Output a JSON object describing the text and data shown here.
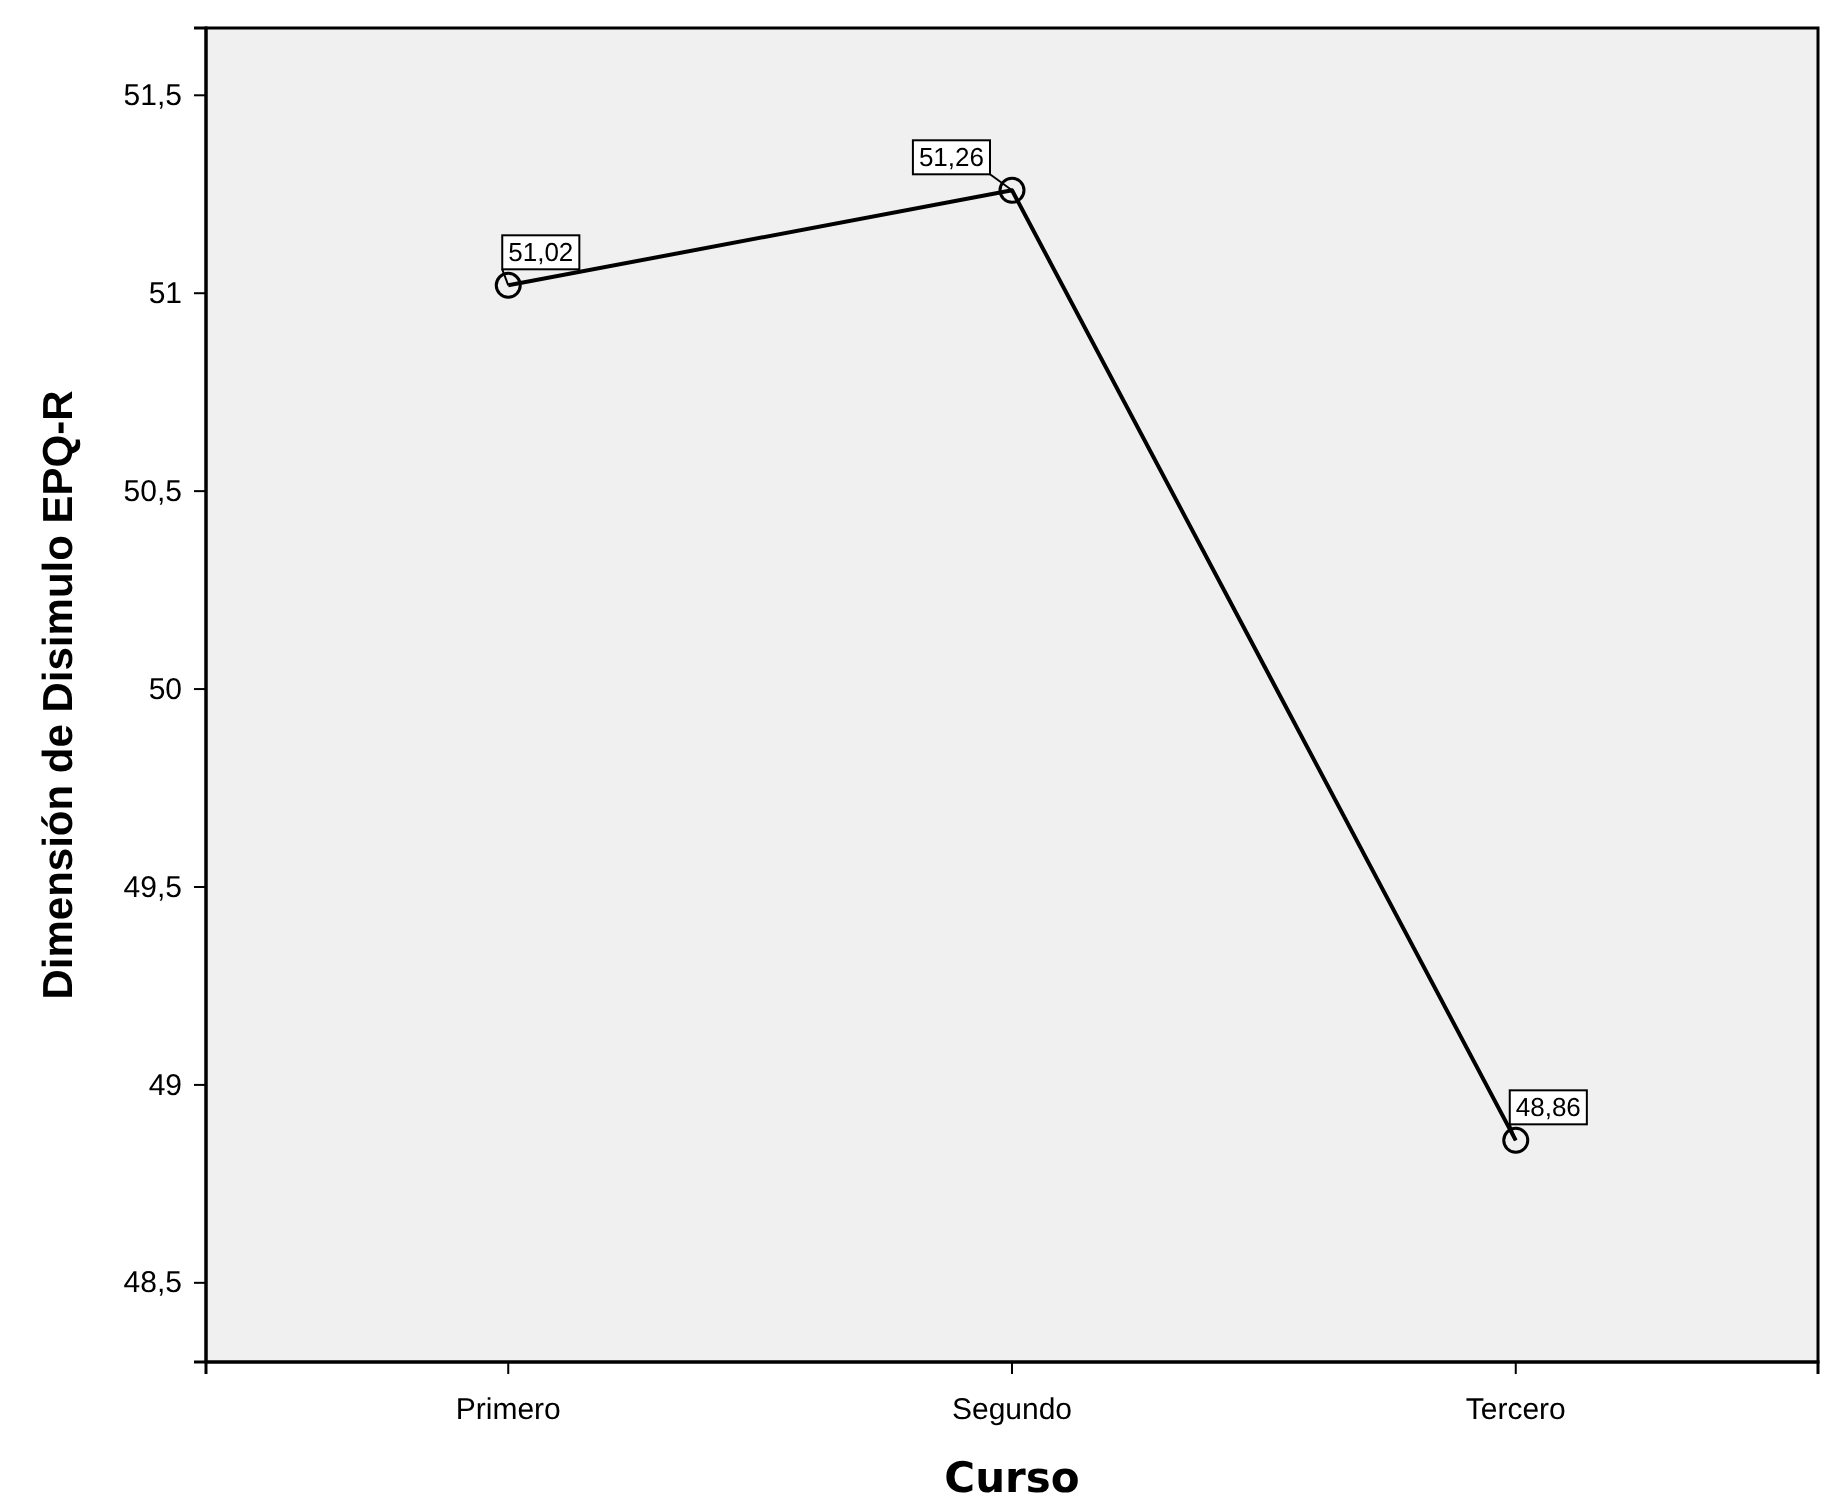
{
  "chart_data": {
    "type": "line",
    "xlabel": "Curso",
    "ylabel": "Dimensión de Disimulo EPQ-R",
    "categories": [
      "Primero",
      "Segundo",
      "Tercero"
    ],
    "series": [
      {
        "color": "#000000",
        "values": [
          51.02,
          51.26,
          48.86
        ],
        "value_labels": [
          "51,02",
          "51,26",
          "48,86"
        ]
      }
    ],
    "ylim": [
      48.3,
      51.67
    ],
    "yticks": [
      {
        "value": 48.5,
        "label": "48,5"
      },
      {
        "value": 49,
        "label": "49"
      },
      {
        "value": 49.5,
        "label": "49,5"
      },
      {
        "value": 50,
        "label": "50"
      },
      {
        "value": 50.5,
        "label": "50,5"
      },
      {
        "value": 51,
        "label": "51"
      },
      {
        "value": 51.5,
        "label": "51,5"
      }
    ],
    "marker": "circle",
    "line_style": "solid"
  }
}
